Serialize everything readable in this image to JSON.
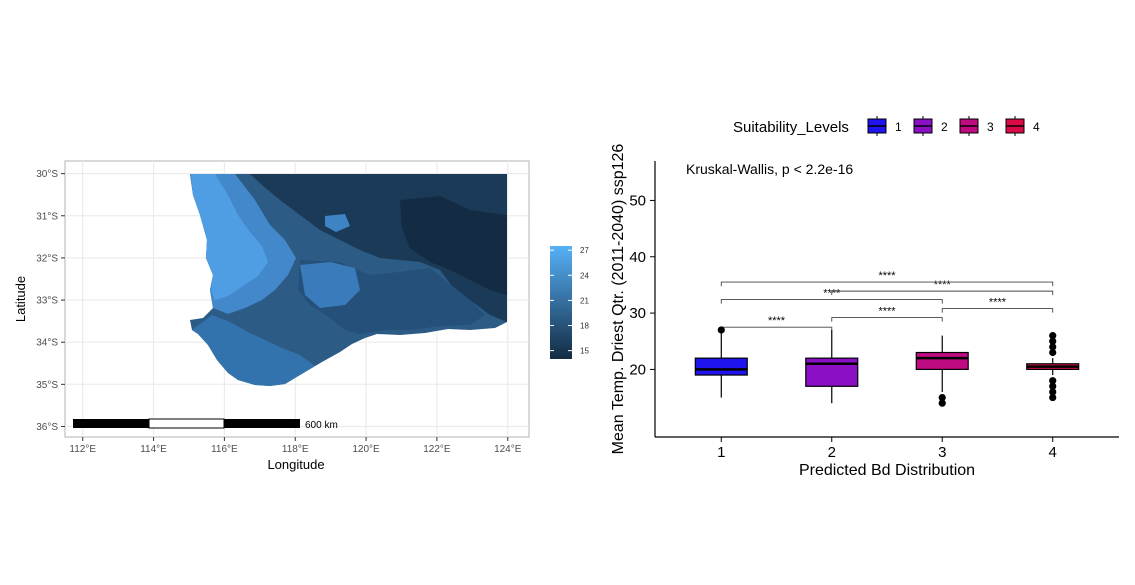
{
  "map_panel": {
    "xlabel": "Longitude",
    "ylabel": "Latitude",
    "x_ticks": [
      {
        "value": 112,
        "label": "112°E"
      },
      {
        "value": 114,
        "label": "114°E"
      },
      {
        "value": 116,
        "label": "116°E"
      },
      {
        "value": 118,
        "label": "118°E"
      },
      {
        "value": 120,
        "label": "120°E"
      },
      {
        "value": 122,
        "label": "122°E"
      },
      {
        "value": 124,
        "label": "124°E"
      }
    ],
    "y_ticks": [
      {
        "value": -30,
        "label": "30°S"
      },
      {
        "value": -31,
        "label": "31°S"
      },
      {
        "value": -32,
        "label": "32°S"
      },
      {
        "value": -33,
        "label": "33°S"
      },
      {
        "value": -34,
        "label": "34°S"
      },
      {
        "value": -35,
        "label": "35°S"
      },
      {
        "value": -36,
        "label": "36°S"
      }
    ],
    "xlim": [
      111.5,
      124.6
    ],
    "ylim": [
      -36.25,
      -29.7
    ],
    "scale_bar_label": "600 km",
    "colorbar_ticks": [
      {
        "value": 27,
        "label": "27"
      },
      {
        "value": 24,
        "label": "24"
      },
      {
        "value": 21,
        "label": "21"
      },
      {
        "value": 18,
        "label": "18"
      },
      {
        "value": 15,
        "label": "15"
      }
    ],
    "colorbar_range": [
      14,
      27.5
    ],
    "colors": {
      "low": "#132b43",
      "high": "#56b1f7"
    }
  },
  "chart_data": {
    "type": "boxplot",
    "xlabel": "Predicted Bd Distribution",
    "ylabel": "Mean Temp. Driest Qtr. (2011-2040) ssp126",
    "ylim": [
      8,
      57
    ],
    "y_ticks": [
      20,
      30,
      40,
      50
    ],
    "annotation": "Kruskal-Wallis, p < 2.2e-16",
    "legend": {
      "title": "Suitability_Levels",
      "position": "top",
      "entries": [
        {
          "label": "1",
          "color": "#1f13f0"
        },
        {
          "label": "2",
          "color": "#8b0fc4"
        },
        {
          "label": "3",
          "color": "#be0b82"
        },
        {
          "label": "4",
          "color": "#da0a46"
        }
      ]
    },
    "boxes": [
      {
        "category": "1",
        "min": 15,
        "q1": 19,
        "median": 20,
        "q3": 22,
        "max": 27,
        "outliers": [
          27
        ],
        "color": "#1f13f0"
      },
      {
        "category": "2",
        "min": 14,
        "q1": 17,
        "median": 21,
        "q3": 22,
        "max": 27,
        "outliers": [],
        "color": "#8b0fc4"
      },
      {
        "category": "3",
        "min": 16,
        "q1": 20,
        "median": 22,
        "q3": 23,
        "max": 26,
        "outliers": [
          14,
          15
        ],
        "color": "#be0b82"
      },
      {
        "category": "4",
        "min": 19,
        "q1": 20,
        "median": 20.5,
        "q3": 21,
        "max": 22,
        "outliers": [
          15,
          16,
          17,
          18,
          23,
          24,
          25,
          26
        ],
        "color": "#da0a46"
      }
    ],
    "comparisons": [
      {
        "from": "1",
        "to": "2",
        "y": 27.5,
        "label": "****"
      },
      {
        "from": "2",
        "to": "3",
        "y": 29.2,
        "label": "****"
      },
      {
        "from": "3",
        "to": "4",
        "y": 30.8,
        "label": "****"
      },
      {
        "from": "1",
        "to": "3",
        "y": 32.4,
        "label": "****"
      },
      {
        "from": "2",
        "to": "4",
        "y": 33.9,
        "label": "****"
      },
      {
        "from": "1",
        "to": "4",
        "y": 35.5,
        "label": "****"
      }
    ]
  }
}
